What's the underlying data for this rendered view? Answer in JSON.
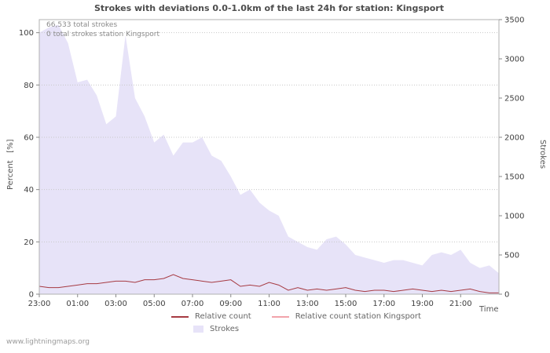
{
  "title": "Strokes with deviations 0.0-1.0km of the last 24h for station: Kingsport",
  "annotations": {
    "total": "66,533 total strokes",
    "station_total": "0 total strokes station Kingsport"
  },
  "axes": {
    "left_label": "Percent   [%]",
    "right_label": "Strokes",
    "x_label": "Time",
    "left_ticks": [
      0,
      20,
      40,
      60,
      80,
      100
    ],
    "right_ticks": [
      0,
      500,
      1000,
      1500,
      2000,
      2500,
      3000,
      3500
    ],
    "x_ticks": [
      "23:00",
      "01:00",
      "03:00",
      "05:00",
      "07:00",
      "09:00",
      "11:00",
      "13:00",
      "15:00",
      "17:00",
      "19:00",
      "21:00"
    ]
  },
  "legend": {
    "items": [
      {
        "label": "Relative count",
        "type": "line",
        "color": "#a63a42"
      },
      {
        "label": "Relative count station Kingsport",
        "type": "line",
        "color": "#f2a3ab"
      },
      {
        "label": "Strokes",
        "type": "area",
        "color": "#e7e3f8"
      }
    ]
  },
  "watermark": "www.lightningmaps.org",
  "chart_data": {
    "type": "area",
    "title": "Strokes with deviations 0.0-1.0km of the last 24h for station: Kingsport",
    "xlabel": "Time",
    "ylabel_left": "Percent [%]",
    "ylabel_right": "Strokes",
    "x_start": "23:00",
    "x_interval_minutes": 30,
    "x_span_hours": 24,
    "ylim_left_percent": [
      0,
      105
    ],
    "ylim_right_strokes": [
      0,
      3500
    ],
    "grid": "horizontal-dashed",
    "legend_position": "bottom",
    "series": [
      {
        "name": "Strokes",
        "type": "area",
        "unit": "percent-left",
        "color": "#e7e3f8",
        "values": [
          100,
          102,
          103,
          96,
          81,
          82,
          76,
          65,
          68,
          99,
          75,
          68,
          58,
          61,
          53,
          58,
          58,
          60,
          53,
          51,
          45,
          38,
          40,
          35,
          32,
          30,
          22,
          20,
          18,
          17,
          21,
          22,
          19,
          15,
          14,
          13,
          12,
          13,
          13,
          12,
          11,
          15,
          16,
          15,
          17,
          12,
          10,
          11,
          8
        ]
      },
      {
        "name": "Relative count",
        "type": "line",
        "unit": "percent-left",
        "color": "#a63a42",
        "values": [
          3,
          2.5,
          2.5,
          3,
          3.5,
          4,
          4,
          4.5,
          5,
          5,
          4.5,
          5.5,
          5.5,
          6,
          7.5,
          6,
          5.5,
          5,
          4.5,
          5,
          5.5,
          3,
          3.5,
          3,
          4.5,
          3.5,
          1.5,
          2.5,
          1.5,
          2,
          1.5,
          2,
          2.5,
          1.5,
          1,
          1.5,
          1.5,
          1,
          1.5,
          2,
          1.5,
          1,
          1.5,
          1,
          1.5,
          2,
          1,
          0.5,
          0.5
        ]
      },
      {
        "name": "Relative count station Kingsport",
        "type": "line",
        "unit": "percent-left",
        "color": "#f2a3ab",
        "values": [
          0,
          0,
          0,
          0,
          0,
          0,
          0,
          0,
          0,
          0,
          0,
          0,
          0,
          0,
          0,
          0,
          0,
          0,
          0,
          0,
          0,
          0,
          0,
          0,
          0,
          0,
          0,
          0,
          0,
          0,
          0,
          0,
          0,
          0,
          0,
          0,
          0,
          0,
          0,
          0,
          0,
          0,
          0,
          0,
          0,
          0,
          0,
          0,
          0
        ]
      }
    ]
  }
}
